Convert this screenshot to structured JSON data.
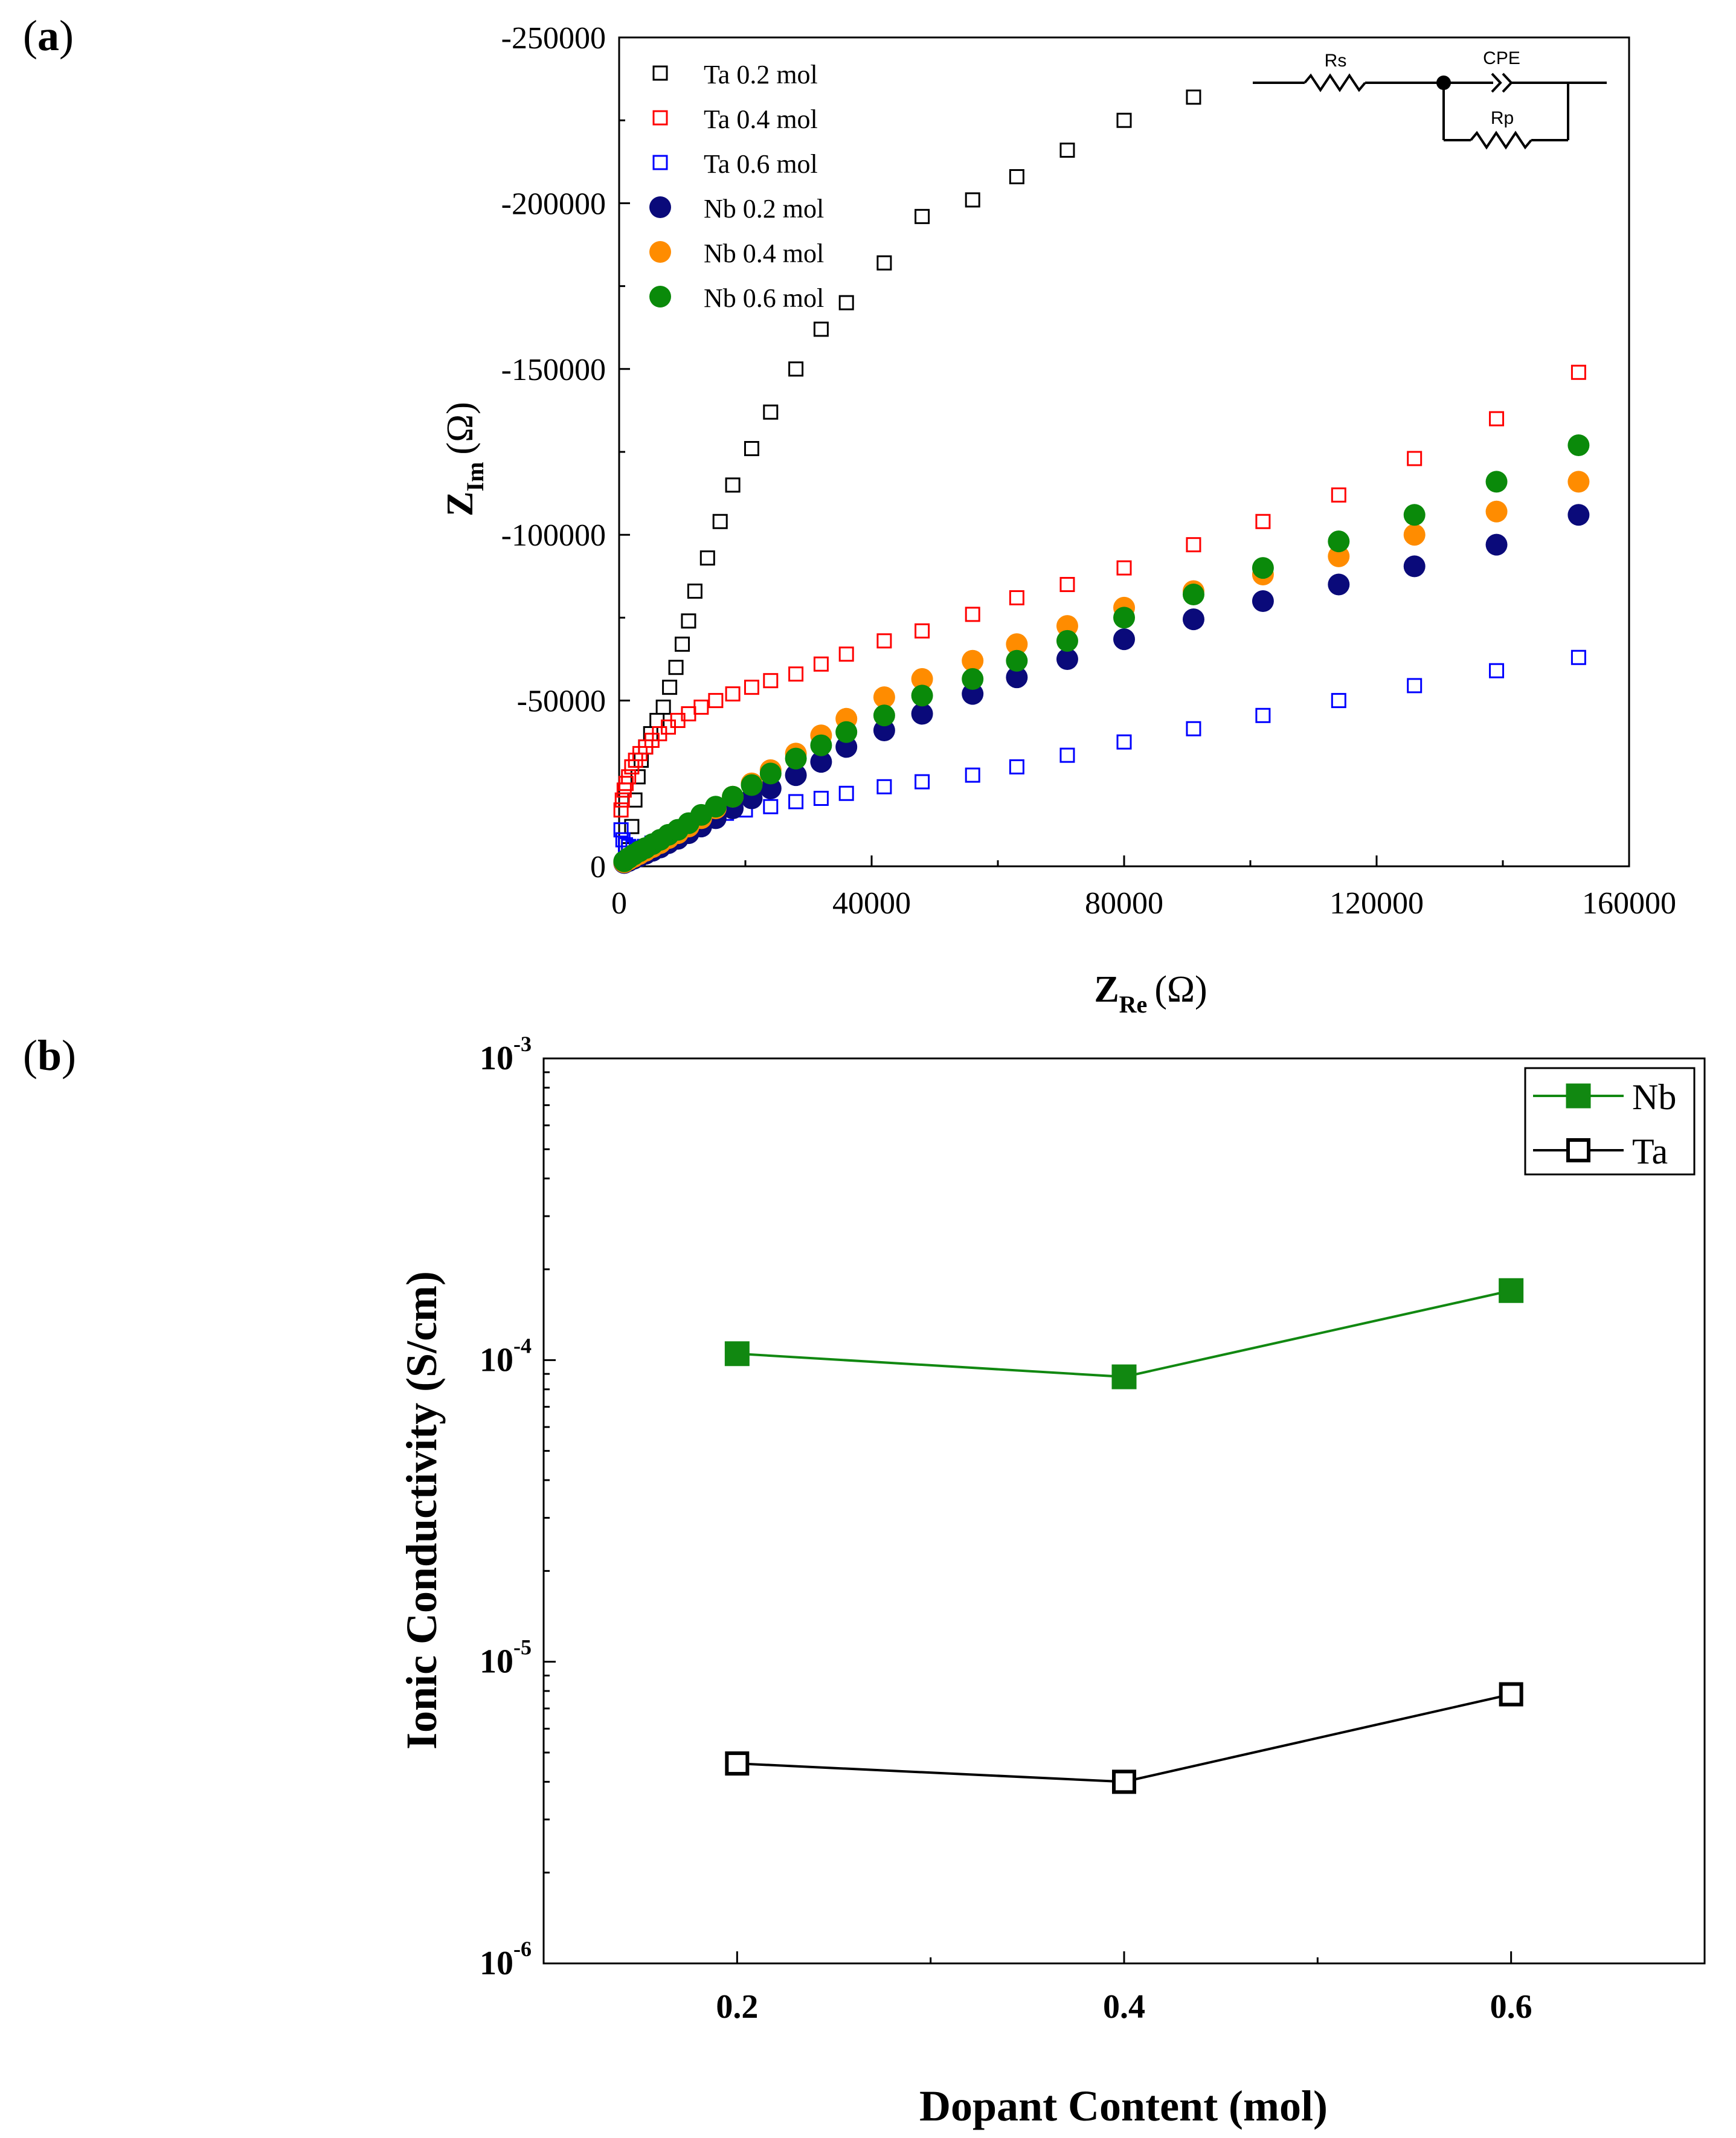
{
  "panels": {
    "a_label": "a",
    "b_label": "b"
  },
  "chart_data": [
    {
      "type": "scatter",
      "title": "",
      "xlabel": "Z",
      "xlabel_sub": "Re",
      "xlabel_unit": "(Ω)",
      "ylabel": "Z",
      "ylabel_sub": "Im",
      "ylabel_unit": "(Ω)",
      "xlim": [
        0,
        160000
      ],
      "ylim": [
        0,
        -250000
      ],
      "y_inverted": true,
      "xticks": [
        0,
        40000,
        80000,
        120000,
        160000
      ],
      "xtick_labels": [
        "0",
        "40000",
        "80000",
        "120000",
        "160000"
      ],
      "yticks": [
        0,
        -50000,
        -100000,
        -150000,
        -200000,
        -250000
      ],
      "ytick_labels": [
        "0",
        "-50000",
        "-100000",
        "-150000",
        "-200000",
        "-250000"
      ],
      "legend_position": "top-left",
      "inset_circuit": {
        "labels": [
          "Rs",
          "CPE",
          "Rp"
        ]
      },
      "series": [
        {
          "name": "Ta 0.2 mol",
          "marker": "open-square",
          "color": "#000000",
          "points": [
            [
              1500,
              -5000
            ],
            [
              2000,
              -12000
            ],
            [
              2500,
              -20000
            ],
            [
              3000,
              -27000
            ],
            [
              3500,
              -32000
            ],
            [
              4200,
              -36000
            ],
            [
              5000,
              -40000
            ],
            [
              6000,
              -44000
            ],
            [
              7000,
              -48000
            ],
            [
              8000,
              -54000
            ],
            [
              9000,
              -60000
            ],
            [
              10000,
              -67000
            ],
            [
              11000,
              -74000
            ],
            [
              12000,
              -83000
            ],
            [
              14000,
              -93000
            ],
            [
              16000,
              -104000
            ],
            [
              18000,
              -115000
            ],
            [
              21000,
              -126000
            ],
            [
              24000,
              -137000
            ],
            [
              28000,
              -150000
            ],
            [
              32000,
              -162000
            ],
            [
              36000,
              -170000
            ],
            [
              42000,
              -182000
            ],
            [
              48000,
              -196000
            ],
            [
              56000,
              -201000
            ],
            [
              63000,
              -208000
            ],
            [
              71000,
              -216000
            ],
            [
              80000,
              -225000
            ],
            [
              91000,
              -232000
            ]
          ]
        },
        {
          "name": "Ta 0.4 mol",
          "marker": "open-square",
          "color": "#ff0000",
          "points": [
            [
              300,
              -17000
            ],
            [
              500,
              -20000
            ],
            [
              800,
              -23000
            ],
            [
              1100,
              -25000
            ],
            [
              1500,
              -27000
            ],
            [
              2000,
              -30000
            ],
            [
              2600,
              -32000
            ],
            [
              3300,
              -34000
            ],
            [
              4200,
              -36000
            ],
            [
              5200,
              -38000
            ],
            [
              6400,
              -40000
            ],
            [
              7800,
              -42000
            ],
            [
              9300,
              -44000
            ],
            [
              11000,
              -46000
            ],
            [
              13000,
              -48000
            ],
            [
              15300,
              -50000
            ],
            [
              18000,
              -52000
            ],
            [
              21000,
              -54000
            ],
            [
              24000,
              -56000
            ],
            [
              28000,
              -58000
            ],
            [
              32000,
              -61000
            ],
            [
              36000,
              -64000
            ],
            [
              42000,
              -68000
            ],
            [
              48000,
              -71000
            ],
            [
              56000,
              -76000
            ],
            [
              63000,
              -81000
            ],
            [
              71000,
              -85000
            ],
            [
              80000,
              -90000
            ],
            [
              91000,
              -97000
            ],
            [
              102000,
              -104000
            ],
            [
              114000,
              -112000
            ],
            [
              126000,
              -123000
            ],
            [
              139000,
              -135000
            ],
            [
              152000,
              -149000
            ]
          ]
        },
        {
          "name": "Ta 0.6 mol",
          "marker": "open-square",
          "color": "#0000ff",
          "points": [
            [
              300,
              -11000
            ],
            [
              600,
              -8000
            ],
            [
              1000,
              -6500
            ],
            [
              1500,
              -6000
            ],
            [
              2200,
              -5500
            ],
            [
              3000,
              -5500
            ],
            [
              4000,
              -6000
            ],
            [
              5200,
              -7000
            ],
            [
              6600,
              -8000
            ],
            [
              8200,
              -9500
            ],
            [
              10000,
              -11000
            ],
            [
              12000,
              -13000
            ],
            [
              14300,
              -14500
            ],
            [
              17000,
              -16000
            ],
            [
              20000,
              -17000
            ],
            [
              24000,
              -18000
            ],
            [
              28000,
              -19500
            ],
            [
              32000,
              -20500
            ],
            [
              36000,
              -22000
            ],
            [
              42000,
              -24000
            ],
            [
              48000,
              -25500
            ],
            [
              56000,
              -27500
            ],
            [
              63000,
              -30000
            ],
            [
              71000,
              -33500
            ],
            [
              80000,
              -37500
            ],
            [
              91000,
              -41500
            ],
            [
              102000,
              -45500
            ],
            [
              114000,
              -50000
            ],
            [
              126000,
              -54500
            ],
            [
              139000,
              -59000
            ],
            [
              152000,
              -63000
            ]
          ]
        },
        {
          "name": "Nb 0.2 mol",
          "marker": "filled-circle",
          "color": "#0a0a7a",
          "points": [
            [
              800,
              -1000
            ],
            [
              1500,
              -1600
            ],
            [
              2300,
              -2300
            ],
            [
              3200,
              -3000
            ],
            [
              4200,
              -3800
            ],
            [
              5300,
              -4700
            ],
            [
              6500,
              -5700
            ],
            [
              7800,
              -7000
            ],
            [
              9300,
              -8300
            ],
            [
              11000,
              -10000
            ],
            [
              13000,
              -12000
            ],
            [
              15300,
              -14500
            ],
            [
              18000,
              -17500
            ],
            [
              21000,
              -20500
            ],
            [
              24000,
              -23500
            ],
            [
              28000,
              -27500
            ],
            [
              32000,
              -31500
            ],
            [
              36000,
              -36000
            ],
            [
              42000,
              -41000
            ],
            [
              48000,
              -46000
            ],
            [
              56000,
              -52000
            ],
            [
              63000,
              -57000
            ],
            [
              71000,
              -62500
            ],
            [
              80000,
              -68500
            ],
            [
              91000,
              -74500
            ],
            [
              102000,
              -80000
            ],
            [
              114000,
              -85000
            ],
            [
              126000,
              -90500
            ],
            [
              139000,
              -97000
            ],
            [
              152000,
              -106000
            ]
          ]
        },
        {
          "name": "Nb 0.4 mol",
          "marker": "filled-circle",
          "color": "#ff8c00",
          "points": [
            [
              800,
              -1200
            ],
            [
              1500,
              -2000
            ],
            [
              2300,
              -2800
            ],
            [
              3200,
              -3700
            ],
            [
              4200,
              -4700
            ],
            [
              5300,
              -5800
            ],
            [
              6500,
              -7000
            ],
            [
              7800,
              -8500
            ],
            [
              9300,
              -10000
            ],
            [
              11000,
              -12000
            ],
            [
              13000,
              -14500
            ],
            [
              15300,
              -17500
            ],
            [
              18000,
              -21000
            ],
            [
              21000,
              -25000
            ],
            [
              24000,
              -29000
            ],
            [
              28000,
              -34000
            ],
            [
              32000,
              -39500
            ],
            [
              36000,
              -44500
            ],
            [
              42000,
              -51000
            ],
            [
              48000,
              -56500
            ],
            [
              56000,
              -62000
            ],
            [
              63000,
              -67000
            ],
            [
              71000,
              -72500
            ],
            [
              80000,
              -78000
            ],
            [
              91000,
              -83000
            ],
            [
              102000,
              -88000
            ],
            [
              114000,
              -93500
            ],
            [
              126000,
              -100000
            ],
            [
              139000,
              -107000
            ],
            [
              152000,
              -116000
            ]
          ]
        },
        {
          "name": "Nb 0.6 mol",
          "marker": "filled-circle",
          "color": "#0a8a0a",
          "points": [
            [
              800,
              -1500
            ],
            [
              1500,
              -2500
            ],
            [
              2300,
              -3500
            ],
            [
              3200,
              -4500
            ],
            [
              4200,
              -5500
            ],
            [
              5300,
              -6700
            ],
            [
              6500,
              -8000
            ],
            [
              7800,
              -9500
            ],
            [
              9300,
              -11000
            ],
            [
              11000,
              -13000
            ],
            [
              13000,
              -15500
            ],
            [
              15300,
              -18000
            ],
            [
              18000,
              -21000
            ],
            [
              21000,
              -24500
            ],
            [
              24000,
              -28000
            ],
            [
              28000,
              -32500
            ],
            [
              32000,
              -36500
            ],
            [
              36000,
              -40500
            ],
            [
              42000,
              -45500
            ],
            [
              48000,
              -51500
            ],
            [
              56000,
              -56500
            ],
            [
              63000,
              -62000
            ],
            [
              71000,
              -68000
            ],
            [
              80000,
              -75000
            ],
            [
              91000,
              -82000
            ],
            [
              102000,
              -90000
            ],
            [
              114000,
              -98000
            ],
            [
              126000,
              -106000
            ],
            [
              139000,
              -116000
            ],
            [
              152000,
              -127000
            ]
          ]
        }
      ]
    },
    {
      "type": "line",
      "title": "",
      "xlabel": "Dopant Content (mol)",
      "ylabel": "Ionic Conductivity (S/cm)",
      "y_scale": "log",
      "xlim": [
        0.1,
        0.7
      ],
      "ylim": [
        1e-06,
        0.001
      ],
      "xticks": [
        0.2,
        0.4,
        0.6
      ],
      "xtick_labels": [
        "0.2",
        "0.4",
        "0.6"
      ],
      "ytick_base": "10",
      "ytick_exps": [
        "-6",
        "-5",
        "-4",
        "-3"
      ],
      "legend_position": "top-right",
      "x": [
        0.2,
        0.4,
        0.6
      ],
      "series": [
        {
          "name": "Nb",
          "marker": "filled-square",
          "color": "#118811",
          "values": [
            0.000105,
            8.8e-05,
            0.00017
          ]
        },
        {
          "name": "Ta",
          "marker": "open-square",
          "color": "#000000",
          "values": [
            4.6e-06,
            4e-06,
            7.8e-06
          ]
        }
      ]
    }
  ]
}
